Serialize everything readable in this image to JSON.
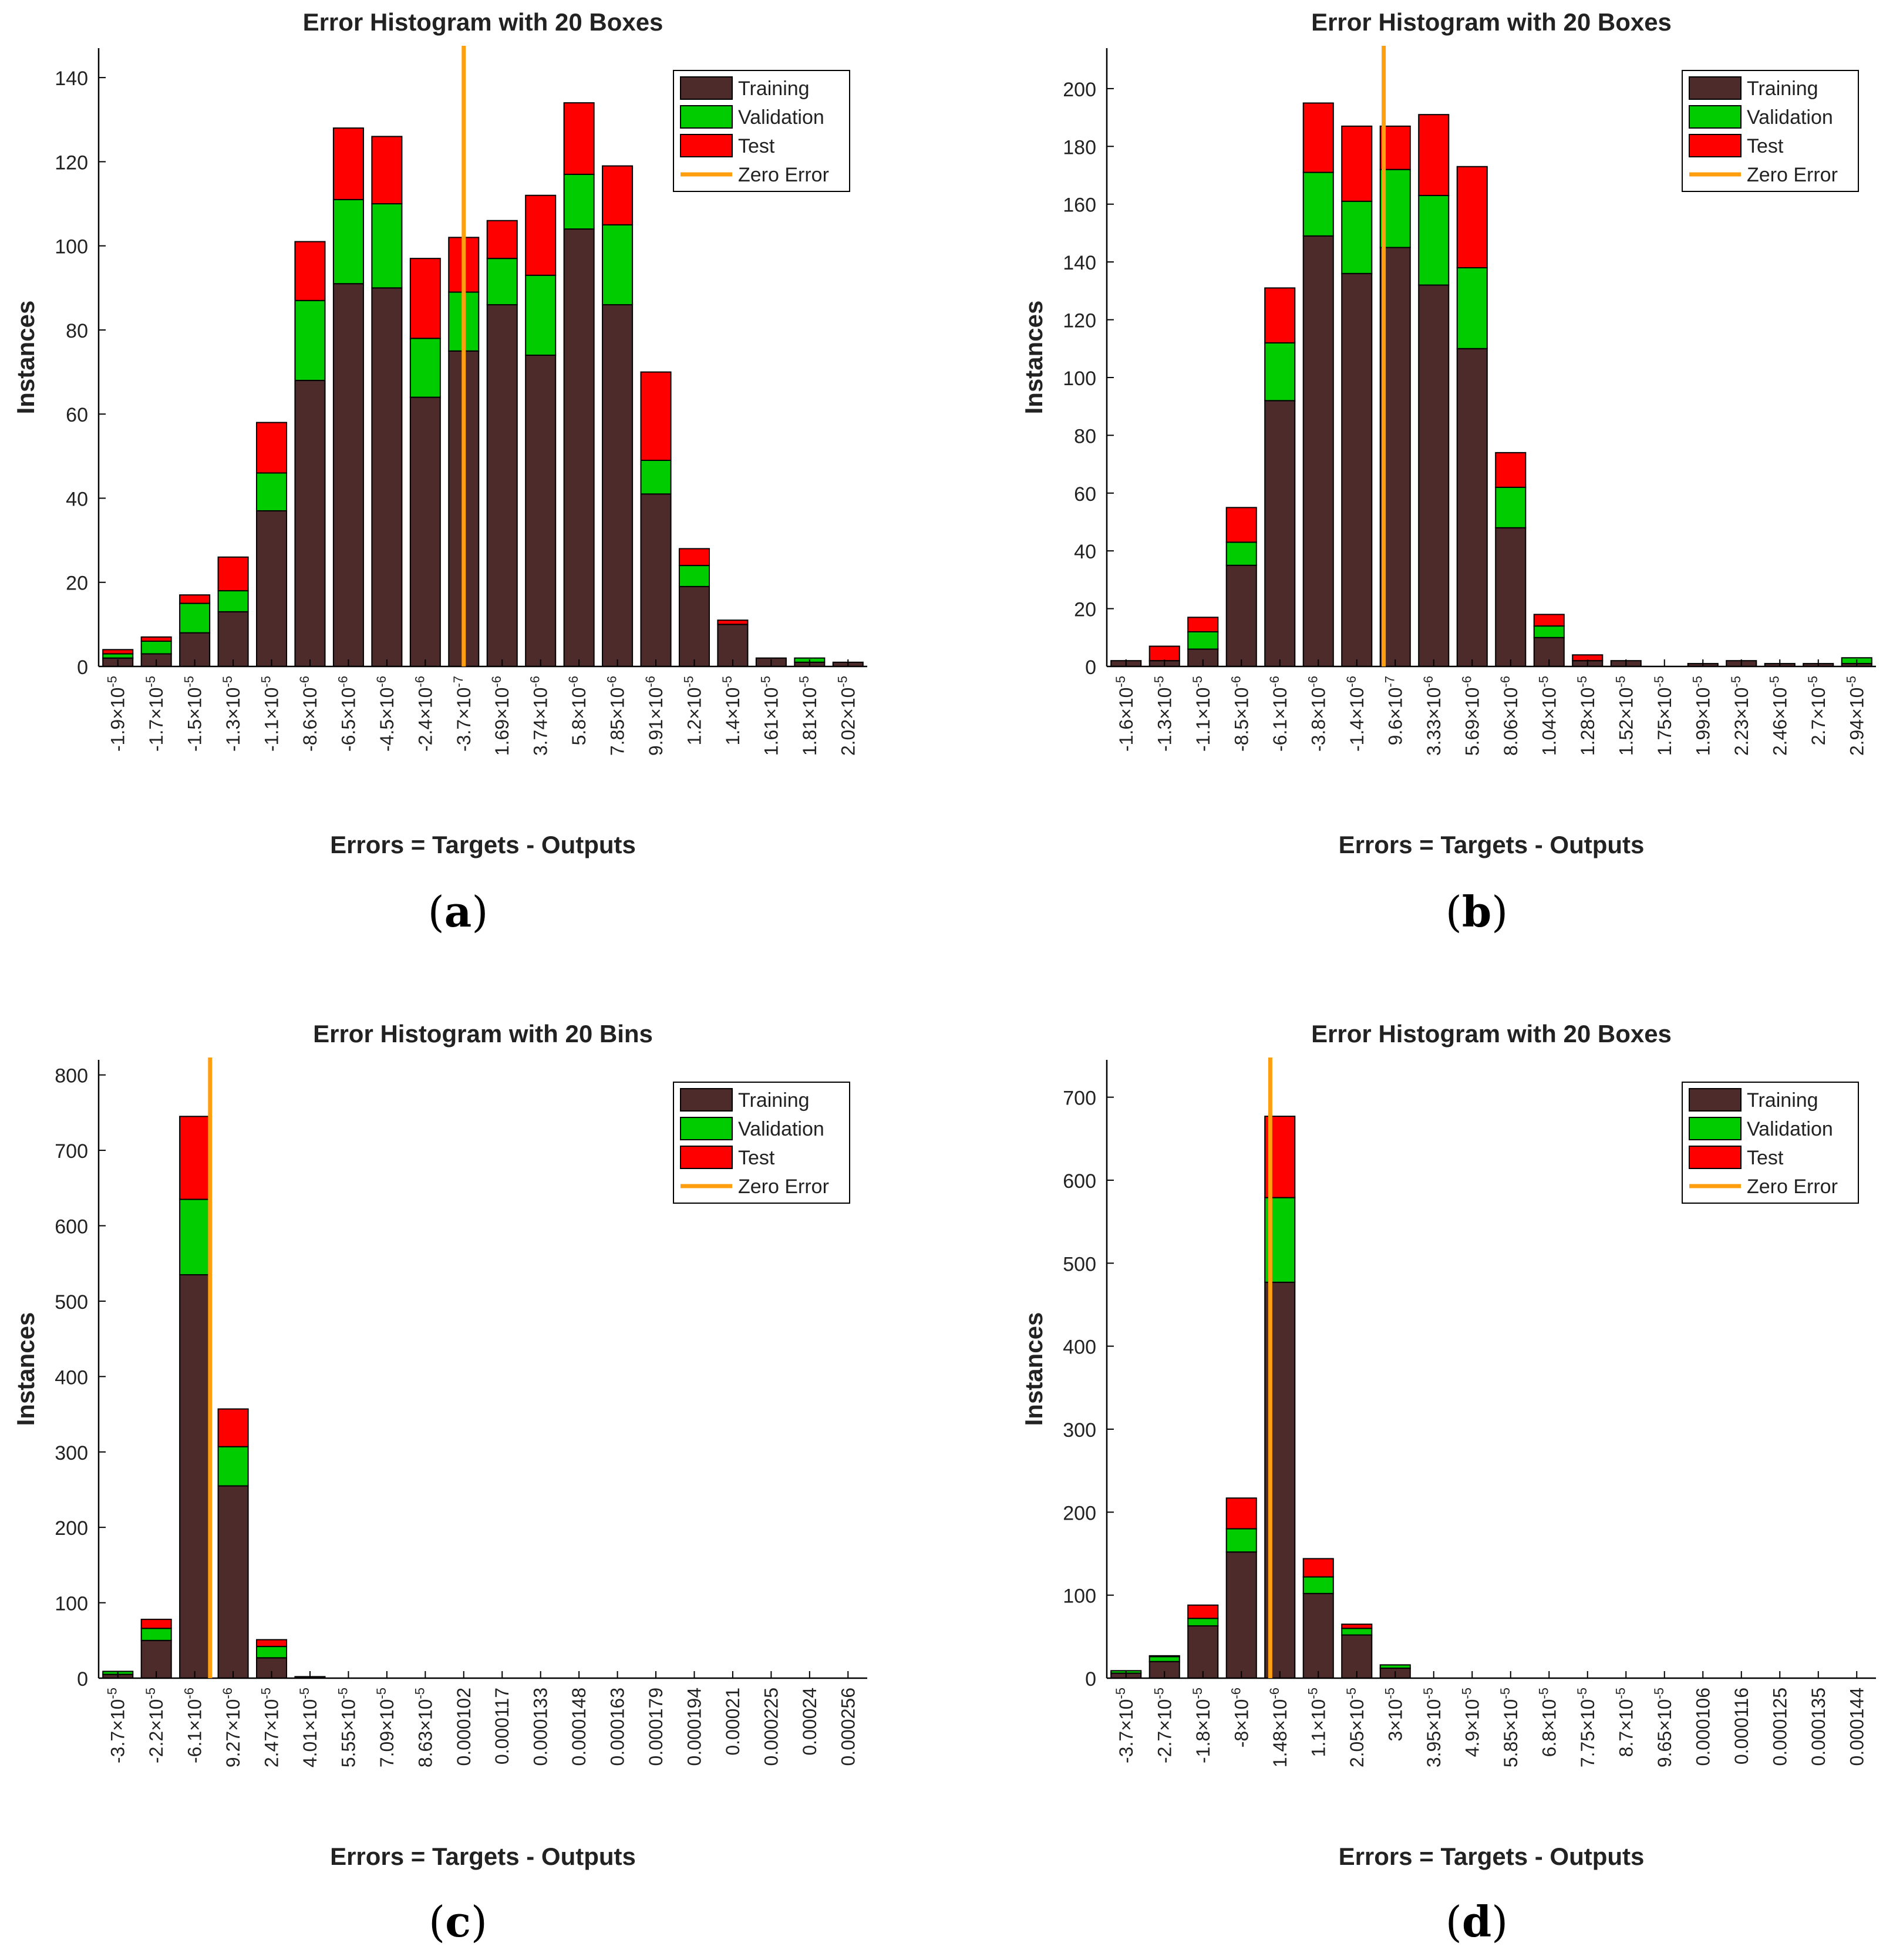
{
  "legend_labels": {
    "training": "Training",
    "validation": "Validation",
    "test": "Test",
    "zero_error": "Zero Error"
  },
  "colors": {
    "training": "#4d2b2b",
    "validation": "#00cc00",
    "test": "#ff0000",
    "zero_error": "#ff9f0f",
    "axis": "#000000"
  },
  "chart_data": [
    {
      "panel": "(a)",
      "caption_letter": "a",
      "type": "bar",
      "stacked": true,
      "title": "Error Histogram with 20 Boxes",
      "xlabel": "Errors = Targets - Outputs",
      "ylabel": "Instances",
      "ylim": [
        0,
        147
      ],
      "yticks": [
        0,
        20,
        40,
        60,
        80,
        100,
        120,
        140
      ],
      "legend_position": "top-right",
      "categories": [
        {
          "m": "-1.9",
          "e": "-5"
        },
        {
          "m": "-1.7",
          "e": "-5"
        },
        {
          "m": "-1.5",
          "e": "-5"
        },
        {
          "m": "-1.3",
          "e": "-5"
        },
        {
          "m": "-1.1",
          "e": "-5"
        },
        {
          "m": "-8.6",
          "e": "-6"
        },
        {
          "m": "-6.5",
          "e": "-6"
        },
        {
          "m": "-4.5",
          "e": "-6"
        },
        {
          "m": "-2.4",
          "e": "-6"
        },
        {
          "m": "-3.7",
          "e": "-7"
        },
        {
          "m": "1.69",
          "e": "-6"
        },
        {
          "m": "3.74",
          "e": "-6"
        },
        {
          "m": "5.8",
          "e": "-6"
        },
        {
          "m": "7.85",
          "e": "-6"
        },
        {
          "m": "9.91",
          "e": "-6"
        },
        {
          "m": "1.2",
          "e": "-5"
        },
        {
          "m": "1.4",
          "e": "-5"
        },
        {
          "m": "1.61",
          "e": "-5"
        },
        {
          "m": "1.81",
          "e": "-5"
        },
        {
          "m": "2.02",
          "e": "-5"
        }
      ],
      "series": [
        {
          "name": "Training",
          "values": [
            2,
            3,
            8,
            13,
            37,
            68,
            91,
            90,
            64,
            75,
            86,
            74,
            104,
            86,
            41,
            19,
            10,
            2,
            1,
            1
          ]
        },
        {
          "name": "Validation",
          "values": [
            1,
            3,
            7,
            5,
            9,
            19,
            20,
            20,
            14,
            14,
            11,
            19,
            13,
            19,
            8,
            5,
            0,
            0,
            1,
            0
          ]
        },
        {
          "name": "Test",
          "values": [
            1,
            1,
            2,
            8,
            12,
            14,
            17,
            16,
            19,
            13,
            9,
            19,
            17,
            14,
            21,
            4,
            1,
            0,
            0,
            0
          ]
        }
      ],
      "zero_error_bin": 9
    },
    {
      "panel": "(b)",
      "caption_letter": "b",
      "type": "bar",
      "stacked": true,
      "title": "Error Histogram with 20 Boxes",
      "xlabel": "Errors = Targets - Outputs",
      "ylabel": "Instances",
      "ylim": [
        0,
        214
      ],
      "yticks": [
        0,
        20,
        40,
        60,
        80,
        100,
        120,
        140,
        160,
        180,
        200
      ],
      "legend_position": "top-right",
      "categories": [
        {
          "m": "-1.6",
          "e": "-5"
        },
        {
          "m": "-1.3",
          "e": "-5"
        },
        {
          "m": "-1.1",
          "e": "-5"
        },
        {
          "m": "-8.5",
          "e": "-6"
        },
        {
          "m": "-6.1",
          "e": "-6"
        },
        {
          "m": "-3.8",
          "e": "-6"
        },
        {
          "m": "-1.4",
          "e": "-6"
        },
        {
          "m": "9.6",
          "e": "-7"
        },
        {
          "m": "3.33",
          "e": "-6"
        },
        {
          "m": "5.69",
          "e": "-6"
        },
        {
          "m": "8.06",
          "e": "-6"
        },
        {
          "m": "1.04",
          "e": "-5"
        },
        {
          "m": "1.28",
          "e": "-5"
        },
        {
          "m": "1.52",
          "e": "-5"
        },
        {
          "m": "1.75",
          "e": "-5"
        },
        {
          "m": "1.99",
          "e": "-5"
        },
        {
          "m": "2.23",
          "e": "-5"
        },
        {
          "m": "2.46",
          "e": "-5"
        },
        {
          "m": "2.7",
          "e": "-5"
        },
        {
          "m": "2.94",
          "e": "-5"
        }
      ],
      "series": [
        {
          "name": "Training",
          "values": [
            2,
            2,
            6,
            35,
            92,
            149,
            136,
            145,
            132,
            110,
            48,
            10,
            2,
            2,
            0,
            1,
            2,
            1,
            1,
            1
          ]
        },
        {
          "name": "Validation",
          "values": [
            0,
            0,
            6,
            8,
            20,
            22,
            25,
            27,
            31,
            28,
            14,
            4,
            0,
            0,
            0,
            0,
            0,
            0,
            0,
            2
          ]
        },
        {
          "name": "Test",
          "values": [
            0,
            5,
            5,
            12,
            19,
            24,
            26,
            15,
            28,
            35,
            12,
            4,
            2,
            0,
            0,
            0,
            0,
            0,
            0,
            0
          ]
        }
      ],
      "zero_error_bin": 6.7
    },
    {
      "panel": "(c)",
      "caption_letter": "c",
      "type": "bar",
      "stacked": true,
      "title": "Error Histogram with 20 Bins",
      "xlabel": "Errors = Targets - Outputs",
      "ylabel": "Instances",
      "ylim": [
        0,
        820
      ],
      "yticks": [
        0,
        100,
        200,
        300,
        400,
        500,
        600,
        700,
        800
      ],
      "legend_position": "top-right",
      "categories": [
        {
          "m": "-3.7",
          "e": "-5"
        },
        {
          "m": "-2.2",
          "e": "-5"
        },
        {
          "m": "-6.1",
          "e": "-6"
        },
        {
          "m": "9.27",
          "e": "-6"
        },
        {
          "m": "2.47",
          "e": "-5"
        },
        {
          "m": "4.01",
          "e": "-5"
        },
        {
          "m": "5.55",
          "e": "-5"
        },
        {
          "m": "7.09",
          "e": "-5"
        },
        {
          "m": "8.63",
          "e": "-5"
        },
        {
          "t": "0.000102"
        },
        {
          "t": "0.000117"
        },
        {
          "t": "0.000133"
        },
        {
          "t": "0.000148"
        },
        {
          "t": "0.000163"
        },
        {
          "t": "0.000179"
        },
        {
          "t": "0.000194"
        },
        {
          "t": "0.00021"
        },
        {
          "t": "0.000225"
        },
        {
          "t": "0.00024"
        },
        {
          "t": "0.000256"
        }
      ],
      "series": [
        {
          "name": "Training",
          "values": [
            5,
            50,
            535,
            255,
            27,
            2,
            0,
            0,
            0,
            0,
            0,
            0,
            0,
            0,
            0,
            0,
            0,
            0,
            0,
            0
          ]
        },
        {
          "name": "Validation",
          "values": [
            4,
            16,
            100,
            52,
            15,
            0,
            0,
            0,
            0,
            0,
            0,
            0,
            0,
            0,
            0,
            0,
            0,
            0,
            0,
            0
          ]
        },
        {
          "name": "Test",
          "values": [
            0,
            12,
            110,
            50,
            9,
            0,
            0,
            0,
            0,
            0,
            0,
            0,
            0,
            0,
            0,
            0,
            0,
            0,
            0,
            0
          ]
        }
      ],
      "zero_error_bin": 2.4
    },
    {
      "panel": "(d)",
      "caption_letter": "d",
      "type": "bar",
      "stacked": true,
      "title": "Error Histogram with 20 Boxes",
      "xlabel": "Errors = Targets - Outputs",
      "ylabel": "Instances",
      "ylim": [
        0,
        745
      ],
      "yticks": [
        0,
        100,
        200,
        300,
        400,
        500,
        600,
        700
      ],
      "legend_position": "top-right",
      "categories": [
        {
          "m": "-3.7",
          "e": "-5"
        },
        {
          "m": "-2.7",
          "e": "-5"
        },
        {
          "m": "-1.8",
          "e": "-5"
        },
        {
          "m": "-8",
          "e": "-6"
        },
        {
          "m": "1.48",
          "e": "-6"
        },
        {
          "m": "1.1",
          "e": "-5"
        },
        {
          "m": "2.05",
          "e": "-5"
        },
        {
          "m": "3",
          "e": "-5"
        },
        {
          "m": "3.95",
          "e": "-5"
        },
        {
          "m": "4.9",
          "e": "-5"
        },
        {
          "m": "5.85",
          "e": "-5"
        },
        {
          "m": "6.8",
          "e": "-5"
        },
        {
          "m": "7.75",
          "e": "-5"
        },
        {
          "m": "8.7",
          "e": "-5"
        },
        {
          "m": "9.65",
          "e": "-5"
        },
        {
          "t": "0.000106"
        },
        {
          "t": "0.000116"
        },
        {
          "t": "0.000125"
        },
        {
          "t": "0.000135"
        },
        {
          "t": "0.000144"
        }
      ],
      "series": [
        {
          "name": "Training",
          "values": [
            6,
            20,
            63,
            152,
            477,
            102,
            52,
            12,
            0,
            0,
            0,
            0,
            0,
            0,
            0,
            0,
            0,
            0,
            0,
            0
          ]
        },
        {
          "name": "Validation",
          "values": [
            3,
            6,
            9,
            28,
            102,
            20,
            8,
            4,
            0,
            0,
            0,
            0,
            0,
            0,
            0,
            0,
            0,
            0,
            0,
            0
          ]
        },
        {
          "name": "Test",
          "values": [
            0,
            1,
            16,
            37,
            98,
            22,
            5,
            0,
            0,
            0,
            0,
            0,
            0,
            0,
            0,
            0,
            0,
            0,
            0,
            0
          ]
        }
      ],
      "zero_error_bin": 3.75
    }
  ]
}
